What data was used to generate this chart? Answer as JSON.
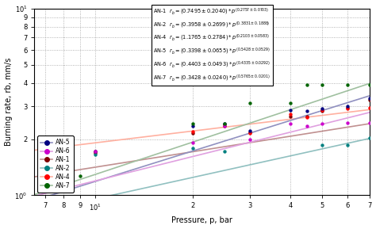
{
  "title": "",
  "xlabel": "Pressure, p, bar",
  "ylabel": "Burning rate, rb, mm/s",
  "xlim": [
    6.5,
    70
  ],
  "ylim": [
    1.0,
    10.0
  ],
  "series": {
    "AN-1": {
      "a": 0.7495,
      "n": 0.2757,
      "dot_color": "#800000",
      "line_color": "#C09090",
      "data_x": [
        10,
        20,
        25,
        30,
        40,
        45,
        50,
        60,
        70
      ],
      "data_y": [
        1.68,
        2.15,
        2.35,
        2.18,
        2.65,
        2.65,
        2.82,
        2.95,
        3.25
      ]
    },
    "AN-2": {
      "a": 0.3958,
      "n": 0.3831,
      "dot_color": "#008080",
      "line_color": "#90C0C0",
      "data_x": [
        10,
        20,
        25,
        50,
        60,
        70
      ],
      "data_y": [
        1.65,
        1.78,
        1.72,
        1.85,
        1.85,
        2.02
      ]
    },
    "AN-4": {
      "a": 1.1765,
      "n": 0.2103,
      "dot_color": "#FF0000",
      "line_color": "#FFB0A0",
      "data_x": [
        10,
        20,
        25,
        30,
        40,
        45,
        50,
        60,
        70
      ],
      "data_y": [
        1.72,
        2.2,
        2.4,
        2.15,
        2.72,
        2.62,
        2.85,
        2.9,
        2.95
      ]
    },
    "AN-5": {
      "a": 0.3398,
      "n": 0.5428,
      "dot_color": "#000080",
      "line_color": "#9090C0",
      "data_x": [
        10,
        20,
        25,
        30,
        40,
        45,
        50,
        60,
        70
      ],
      "data_y": [
        1.72,
        2.35,
        2.42,
        2.22,
        2.85,
        2.82,
        2.9,
        3.0,
        3.3
      ]
    },
    "AN-6": {
      "a": 0.4403,
      "n": 0.4335,
      "dot_color": "#CC00CC",
      "line_color": "#E0A0E0",
      "data_x": [
        10,
        20,
        25,
        30,
        40,
        45,
        50,
        60,
        70
      ],
      "data_y": [
        1.72,
        1.92,
        2.35,
        2.0,
        2.42,
        2.35,
        2.42,
        2.45,
        2.45
      ]
    },
    "AN-7": {
      "a": 0.3428,
      "n": 0.5765,
      "dot_color": "#006400",
      "line_color": "#A0C0A0",
      "data_x": [
        7,
        8,
        9,
        20,
        25,
        30,
        40,
        45,
        50,
        60,
        70
      ],
      "data_y": [
        1.32,
        1.27,
        1.27,
        2.42,
        2.42,
        3.12,
        3.12,
        3.92,
        3.92,
        3.92,
        3.92
      ]
    }
  },
  "legend_order": [
    "AN-5",
    "AN-6",
    "AN-1",
    "AN-2",
    "AN-4",
    "AN-7"
  ],
  "annot_lines": [
    "AN-1   r_b = (0.7495 \\u00b1 0.2040) * p^(0.2757 \\u00b1 0.0703)",
    "AN-2   r_b = (0.3958 \\u00b1 0.2699) * p^(0.3831 \\u00b1 0.1888)",
    "AN-4   r_b = (1.1765 \\u00b1 0.2784) * p^(0.2103 \\u00b1 0.0583)",
    "AN-5   r_b = (0.3398 \\u00b1 0.0655) * p^(0.5428 \\u00b1 0.0529)",
    "AN-6   r_b = (0.4403 \\u00b1 0.0493) * p^(0.4335 \\u00b1 0.0292)",
    "AN-7   r_b = (0.3428 \\u00b1 0.0240) * p^(0.5765 \\u00b1 0.0201)"
  ]
}
